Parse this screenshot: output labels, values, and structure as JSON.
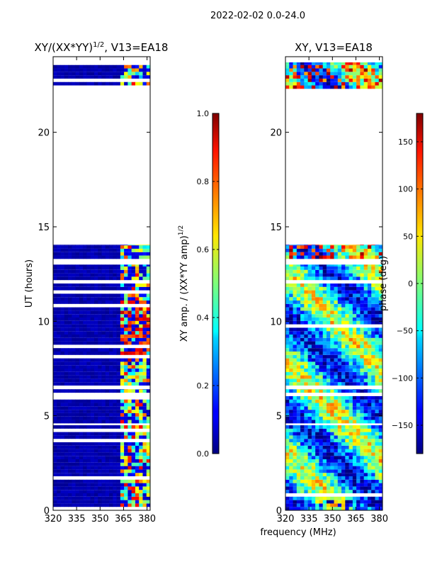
{
  "chart_data": [
    {
      "type": "heatmap",
      "suptitle": "2022-02-02 0.0-24.0",
      "title_main": "XY/(XX*YY)",
      "title_sup": "1/2",
      "title_tail": ", V13=EA18",
      "xlabel": "",
      "ylabel": "UT (hours)",
      "xlim": [
        320,
        382
      ],
      "ylim": [
        0,
        24
      ],
      "xticks": [
        320,
        335,
        350,
        365,
        380
      ],
      "xtick_labels": [
        "320",
        "335",
        "350",
        "365",
        "380"
      ],
      "yticks": [
        0,
        5,
        10,
        15,
        20
      ],
      "ytick_labels": [
        "0",
        "5",
        "10",
        "15",
        "20"
      ],
      "data_blocks": [
        [
          0.0,
          4.5
        ],
        [
          4.6,
          6.4
        ],
        [
          6.6,
          13.0
        ],
        [
          13.3,
          14.05
        ],
        [
          22.3,
          23.7
        ]
      ],
      "colorbar": {
        "label_main": "XY amp. / (XX*YY amp)",
        "label_sup": "1/2",
        "range": [
          0.0,
          1.0
        ],
        "ticks": [
          0.0,
          0.2,
          0.4,
          0.6,
          0.8,
          1.0
        ],
        "tick_labels": [
          "0.0",
          "0.2",
          "0.4",
          "0.6",
          "0.8",
          "1.0"
        ]
      }
    },
    {
      "type": "heatmap",
      "title": "XY, V13=EA18",
      "xlabel": "frequency (MHz)",
      "ylabel": "",
      "xlim": [
        320,
        382
      ],
      "ylim": [
        0,
        24
      ],
      "xticks": [
        320,
        335,
        350,
        365,
        380
      ],
      "xtick_labels": [
        "320",
        "335",
        "350",
        "365",
        "380"
      ],
      "yticks": [
        0,
        5,
        10,
        15,
        20
      ],
      "ytick_labels": [
        "0",
        "5",
        "10",
        "15",
        "20"
      ],
      "data_blocks": [
        [
          0.0,
          4.5
        ],
        [
          4.6,
          6.4
        ],
        [
          6.6,
          13.0
        ],
        [
          13.3,
          14.05
        ],
        [
          22.3,
          23.7
        ]
      ],
      "colorbar": {
        "label": "phase (deg)",
        "range": [
          -180,
          180
        ],
        "ticks": [
          150,
          100,
          50,
          0,
          -50,
          -100,
          -150
        ],
        "tick_labels": [
          "150",
          "100",
          "50",
          "0",
          "−50",
          "−100",
          "−150"
        ]
      }
    }
  ]
}
